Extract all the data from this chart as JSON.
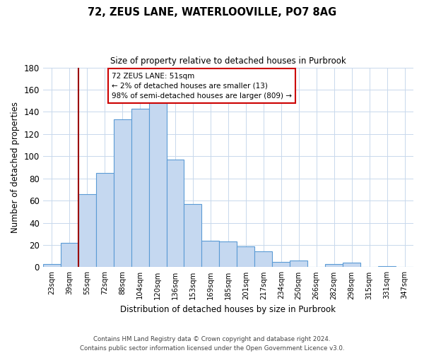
{
  "title": "72, ZEUS LANE, WATERLOOVILLE, PO7 8AG",
  "subtitle": "Size of property relative to detached houses in Purbrook",
  "xlabel": "Distribution of detached houses by size in Purbrook",
  "ylabel": "Number of detached properties",
  "bar_labels": [
    "23sqm",
    "39sqm",
    "55sqm",
    "72sqm",
    "88sqm",
    "104sqm",
    "120sqm",
    "136sqm",
    "153sqm",
    "169sqm",
    "185sqm",
    "201sqm",
    "217sqm",
    "234sqm",
    "250sqm",
    "266sqm",
    "282sqm",
    "298sqm",
    "315sqm",
    "331sqm",
    "347sqm"
  ],
  "bar_values": [
    3,
    22,
    66,
    85,
    133,
    143,
    150,
    97,
    57,
    24,
    23,
    19,
    14,
    5,
    6,
    0,
    3,
    4,
    0,
    1,
    0
  ],
  "bar_color": "#c5d8f0",
  "bar_edge_color": "#5b9bd5",
  "marker_line_color": "#9b0000",
  "annotation_line1": "72 ZEUS LANE: 51sqm",
  "annotation_line2": "← 2% of detached houses are smaller (13)",
  "annotation_line3": "98% of semi-detached houses are larger (809) →",
  "ylim": [
    0,
    180
  ],
  "yticks": [
    0,
    20,
    40,
    60,
    80,
    100,
    120,
    140,
    160,
    180
  ],
  "footer_line1": "Contains HM Land Registry data © Crown copyright and database right 2024.",
  "footer_line2": "Contains public sector information licensed under the Open Government Licence v3.0.",
  "background_color": "#ffffff",
  "grid_color": "#c8d8ec"
}
